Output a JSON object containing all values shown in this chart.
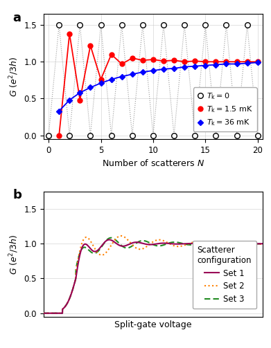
{
  "panel_a": {
    "xlabel": "Number of scatterers $N$",
    "ylabel": "$G$ ($e^2/3h$)",
    "xlim": [
      -0.5,
      20.5
    ],
    "ylim": [
      -0.05,
      1.65
    ],
    "yticks": [
      0,
      0.5,
      1.0,
      1.5
    ],
    "xticks": [
      0,
      5,
      10,
      15,
      20
    ],
    "black_N": [
      0,
      1,
      2,
      3,
      4,
      5,
      6,
      7,
      8,
      9,
      10,
      11,
      12,
      13,
      14,
      15,
      16,
      17,
      18,
      19,
      20
    ],
    "black_G": [
      0,
      1.5,
      0,
      1.5,
      0,
      1.5,
      0,
      1.5,
      0,
      1.5,
      0,
      1.5,
      0,
      1.5,
      0,
      1.5,
      0,
      1.5,
      0,
      1.5,
      0
    ],
    "red_N": [
      1,
      2,
      3,
      4,
      5,
      6,
      7,
      8,
      9,
      10,
      11,
      12,
      13,
      14,
      15,
      16,
      17,
      18,
      19,
      20
    ],
    "red_G": [
      0.0,
      1.38,
      0.48,
      1.22,
      0.76,
      1.1,
      0.97,
      1.05,
      1.02,
      1.03,
      1.01,
      1.02,
      1.0,
      1.01,
      1.0,
      1.0,
      1.0,
      1.0,
      1.0,
      1.0
    ],
    "blue_N": [
      1,
      2,
      3,
      4,
      5,
      6,
      7,
      8,
      9,
      10,
      11,
      12,
      13,
      14,
      15,
      16,
      17,
      18,
      19,
      20
    ],
    "blue_G": [
      0.33,
      0.48,
      0.58,
      0.65,
      0.71,
      0.76,
      0.8,
      0.83,
      0.86,
      0.88,
      0.9,
      0.91,
      0.93,
      0.94,
      0.95,
      0.96,
      0.97,
      0.97,
      0.98,
      0.99
    ]
  },
  "panel_b": {
    "xlabel": "Split-gate voltage",
    "ylabel": "$G$ ($e^2/3h$)",
    "ylim": [
      -0.05,
      1.75
    ],
    "yticks": [
      0,
      0.5,
      1.0,
      1.5
    ],
    "legend_title": "Scatterer\nconfiguration",
    "legend_labels": [
      "Set 1",
      "Set 2",
      "Set 3"
    ],
    "legend_colors": [
      "#990055",
      "#FF8000",
      "#228B22"
    ],
    "set2_color": "#FF8C00"
  },
  "black_line_color": "#999999",
  "background_color": "#ffffff",
  "grid_color": "#bbbbbb",
  "grid_alpha": 0.6
}
